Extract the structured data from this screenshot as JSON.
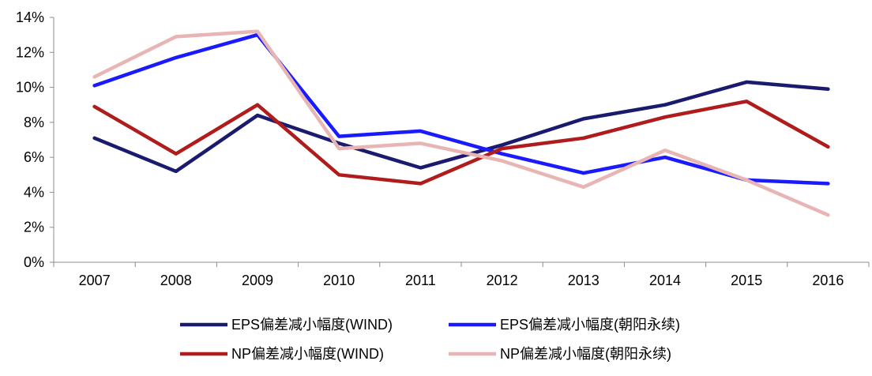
{
  "chart_data": {
    "type": "line",
    "title": "",
    "xlabel": "",
    "ylabel": "",
    "categories": [
      "2007",
      "2008",
      "2009",
      "2010",
      "2011",
      "2012",
      "2013",
      "2014",
      "2015",
      "2016"
    ],
    "ylim": [
      0,
      14
    ],
    "y_ticks": [
      "0%",
      "2%",
      "4%",
      "6%",
      "8%",
      "10%",
      "12%",
      "14%"
    ],
    "grid": false,
    "legend_position": "bottom",
    "series": [
      {
        "name": "EPS偏差减小幅度(WIND)",
        "color": "#1a1a6e",
        "values": [
          7.1,
          5.2,
          8.4,
          6.8,
          5.4,
          6.7,
          8.2,
          9.0,
          10.3,
          9.9
        ]
      },
      {
        "name": "EPS偏差减小幅度(朝阳永续)",
        "color": "#1a1aff",
        "values": [
          10.1,
          11.7,
          13.0,
          7.2,
          7.5,
          6.2,
          5.1,
          6.0,
          4.7,
          4.5
        ]
      },
      {
        "name": "NP偏差减小幅度(WIND)",
        "color": "#b01c1c",
        "values": [
          8.9,
          6.2,
          9.0,
          5.0,
          4.5,
          6.5,
          7.1,
          8.3,
          9.2,
          6.6
        ]
      },
      {
        "name": "NP偏差减小幅度(朝阳永续)",
        "color": "#e8b5b5",
        "values": [
          10.6,
          12.9,
          13.2,
          6.5,
          6.8,
          5.8,
          4.3,
          6.4,
          4.7,
          2.7
        ]
      }
    ]
  }
}
